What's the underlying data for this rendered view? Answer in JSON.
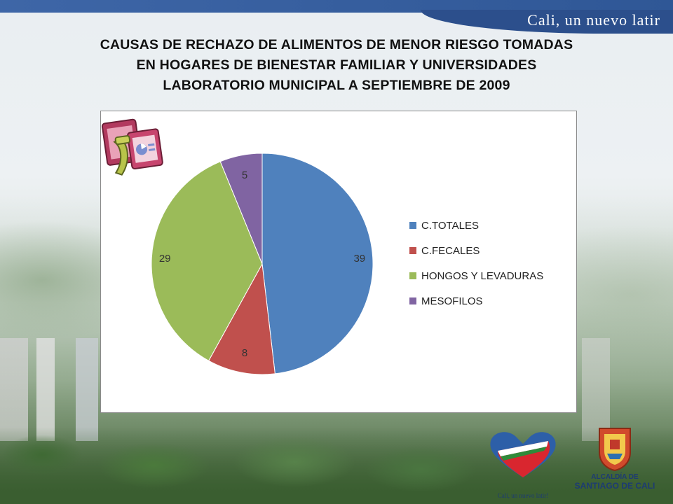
{
  "header": {
    "brand": "Cali, un nuevo latir"
  },
  "title": {
    "line1": "CAUSAS DE RECHAZO DE ALIMENTOS DE MENOR RIESGO TOMADAS",
    "line2": "EN HOGARES DE BIENESTAR FAMILIAR Y UNIVERSIDADES",
    "line3": "LABORATORIO MUNICIPAL A SEPTIEMBRE DE 2009"
  },
  "chart_data": {
    "type": "pie",
    "categories": [
      "C.TOTALES",
      "C.FECALES",
      "HONGOS Y LEVADURAS",
      "MESOFILOS"
    ],
    "values": [
      39,
      8,
      29,
      5
    ],
    "value_labels": [
      "39",
      "8",
      "29",
      "5"
    ],
    "colors": [
      "#4f81bd",
      "#c0504d",
      "#9bbb59",
      "#8064a2"
    ],
    "start_angle_deg": 0,
    "direction": "clockwise",
    "legend_position": "right",
    "title": ""
  },
  "footer": {
    "logo1_text": "Cali, un nuevo latir!",
    "logo2_line1": "ALCALDÍA DE",
    "logo2_line2": "SANTIAGO DE CALI"
  }
}
